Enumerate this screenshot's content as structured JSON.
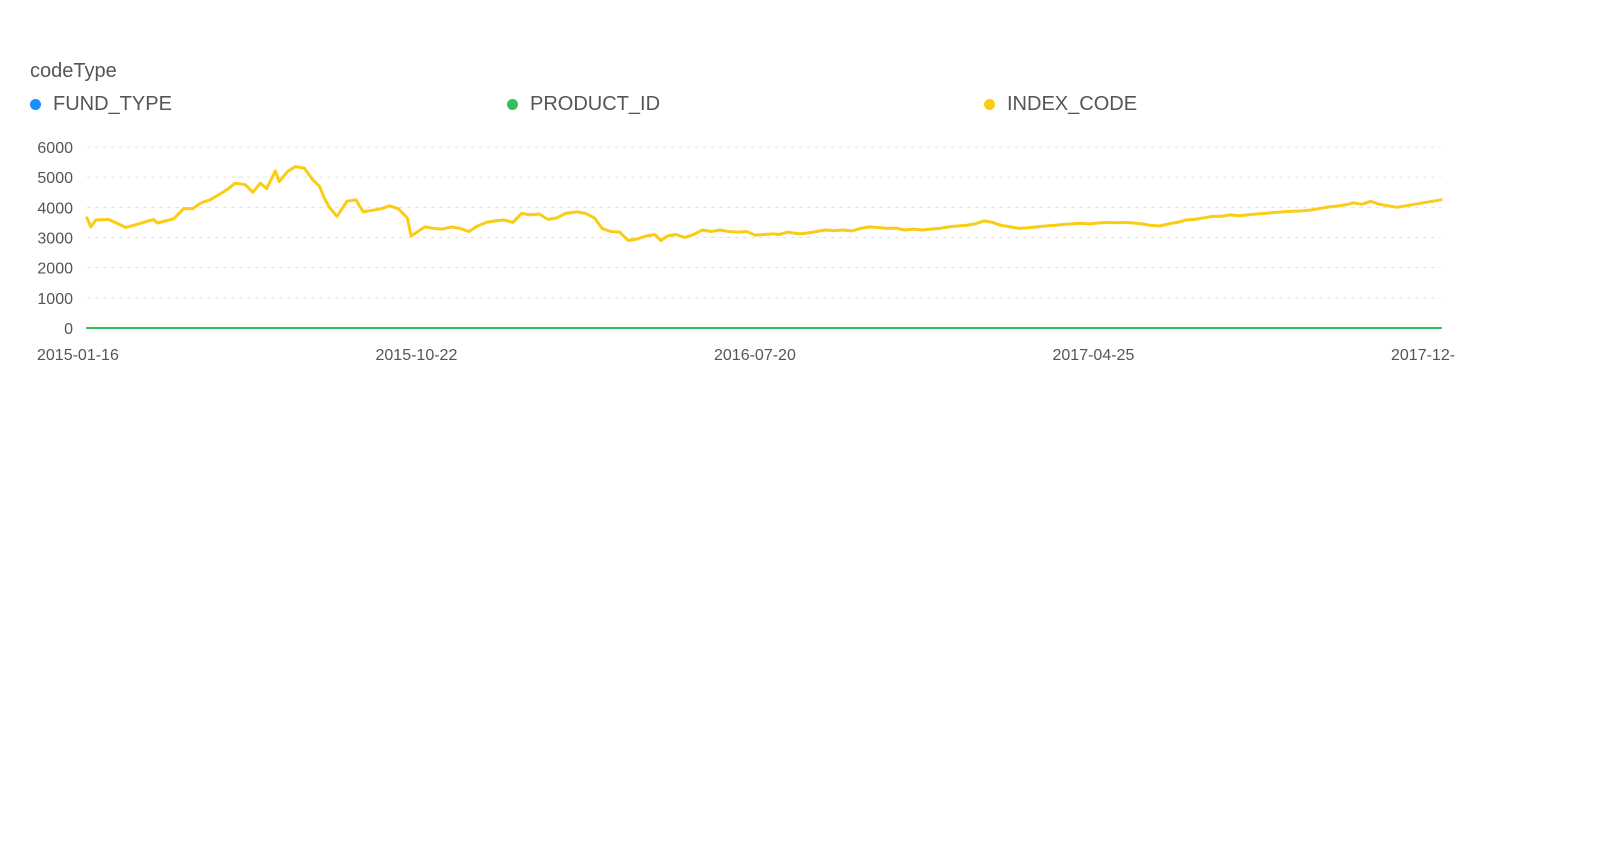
{
  "legend": {
    "title": "codeType",
    "items": [
      {
        "label": "FUND_TYPE",
        "color": "#1890FF"
      },
      {
        "label": "PRODUCT_ID",
        "color": "#2FC25B"
      },
      {
        "label": "INDEX_CODE",
        "color": "#FACC14"
      }
    ]
  },
  "chart_data": {
    "type": "line",
    "legend_title": "codeType",
    "legend_position": "top",
    "grid": true,
    "y_ticks": [
      "0",
      "1000",
      "2000",
      "3000",
      "4000",
      "5000",
      "6000"
    ],
    "x_ticks": [
      "2015-01-16",
      "2015-10-22",
      "2016-07-20",
      "2017-04-25",
      "2017-12-"
    ],
    "ylim": [
      0,
      6000
    ],
    "x_range": [
      "2015-01-16",
      "2017-12-29"
    ],
    "series": [
      {
        "name": "FUND_TYPE",
        "color": "#1890FF",
        "points": [
          [
            "2015-01-16",
            0
          ],
          [
            "2017-12-29",
            0
          ]
        ]
      },
      {
        "name": "PRODUCT_ID",
        "color": "#2FC25B",
        "points": [
          [
            "2015-01-16",
            0
          ],
          [
            "2017-12-29",
            0
          ]
        ]
      },
      {
        "name": "INDEX_CODE",
        "color": "#FACC14",
        "points": [
          [
            "2015-01-16",
            3650
          ],
          [
            "2015-01-19",
            3350
          ],
          [
            "2015-01-23",
            3580
          ],
          [
            "2015-02-02",
            3600
          ],
          [
            "2015-02-16",
            3330
          ],
          [
            "2015-03-02",
            3500
          ],
          [
            "2015-03-10",
            3600
          ],
          [
            "2015-03-13",
            3480
          ],
          [
            "2015-03-26",
            3620
          ],
          [
            "2015-04-03",
            3960
          ],
          [
            "2015-04-10",
            3950
          ],
          [
            "2015-04-17",
            4150
          ],
          [
            "2015-04-24",
            4250
          ],
          [
            "2015-05-04",
            4500
          ],
          [
            "2015-05-08",
            4600
          ],
          [
            "2015-05-14",
            4800
          ],
          [
            "2015-05-22",
            4750
          ],
          [
            "2015-05-28",
            4500
          ],
          [
            "2015-06-03",
            4800
          ],
          [
            "2015-06-08",
            4620
          ],
          [
            "2015-06-15",
            5200
          ],
          [
            "2015-06-18",
            4850
          ],
          [
            "2015-06-25",
            5200
          ],
          [
            "2015-07-01",
            5350
          ],
          [
            "2015-07-08",
            5300
          ],
          [
            "2015-07-15",
            4900
          ],
          [
            "2015-07-20",
            4700
          ],
          [
            "2015-07-24",
            4300
          ],
          [
            "2015-07-28",
            4000
          ],
          [
            "2015-08-03",
            3700
          ],
          [
            "2015-08-11",
            4200
          ],
          [
            "2015-08-18",
            4250
          ],
          [
            "2015-08-24",
            3850
          ],
          [
            "2015-08-31",
            3900
          ],
          [
            "2015-09-07",
            3950
          ],
          [
            "2015-09-14",
            4050
          ],
          [
            "2015-09-21",
            3950
          ],
          [
            "2015-09-28",
            3650
          ],
          [
            "2015-10-01",
            3050
          ],
          [
            "2015-10-12",
            3350
          ],
          [
            "2015-10-19",
            3300
          ],
          [
            "2015-10-26",
            3280
          ],
          [
            "2015-11-02",
            3350
          ],
          [
            "2015-11-09",
            3300
          ],
          [
            "2015-11-16",
            3200
          ],
          [
            "2015-11-23",
            3380
          ],
          [
            "2015-11-30",
            3500
          ],
          [
            "2015-12-07",
            3550
          ],
          [
            "2015-12-14",
            3580
          ],
          [
            "2015-12-21",
            3500
          ],
          [
            "2015-12-28",
            3800
          ],
          [
            "2016-01-04",
            3750
          ],
          [
            "2016-01-11",
            3780
          ],
          [
            "2016-01-18",
            3600
          ],
          [
            "2016-01-25",
            3650
          ],
          [
            "2016-02-01",
            3800
          ],
          [
            "2016-02-10",
            3850
          ],
          [
            "2016-02-17",
            3800
          ],
          [
            "2016-02-24",
            3650
          ],
          [
            "2016-03-01",
            3300
          ],
          [
            "2016-03-08",
            3200
          ],
          [
            "2016-03-15",
            3180
          ],
          [
            "2016-03-22",
            2900
          ],
          [
            "2016-03-29",
            2950
          ],
          [
            "2016-04-05",
            3050
          ],
          [
            "2016-04-12",
            3100
          ],
          [
            "2016-04-17",
            2900
          ],
          [
            "2016-04-22",
            3050
          ],
          [
            "2016-04-29",
            3100
          ],
          [
            "2016-05-06",
            3000
          ],
          [
            "2016-05-13",
            3100
          ],
          [
            "2016-05-20",
            3250
          ],
          [
            "2016-05-27",
            3200
          ],
          [
            "2016-06-03",
            3250
          ],
          [
            "2016-06-10",
            3200
          ],
          [
            "2016-06-17",
            3180
          ],
          [
            "2016-06-24",
            3200
          ],
          [
            "2016-07-01",
            3080
          ],
          [
            "2016-07-08",
            3100
          ],
          [
            "2016-07-15",
            3120
          ],
          [
            "2016-07-20",
            3100
          ],
          [
            "2016-07-27",
            3180
          ],
          [
            "2016-08-05",
            3120
          ],
          [
            "2016-08-12",
            3150
          ],
          [
            "2016-08-19",
            3200
          ],
          [
            "2016-08-26",
            3250
          ],
          [
            "2016-09-02",
            3230
          ],
          [
            "2016-09-09",
            3250
          ],
          [
            "2016-09-16",
            3220
          ],
          [
            "2016-09-23",
            3300
          ],
          [
            "2016-09-30",
            3350
          ],
          [
            "2016-10-07",
            3330
          ],
          [
            "2016-10-14",
            3300
          ],
          [
            "2016-10-21",
            3310
          ],
          [
            "2016-10-28",
            3250
          ],
          [
            "2016-11-04",
            3280
          ],
          [
            "2016-11-11",
            3250
          ],
          [
            "2016-11-18",
            3280
          ],
          [
            "2016-11-25",
            3300
          ],
          [
            "2016-12-02",
            3350
          ],
          [
            "2016-12-09",
            3380
          ],
          [
            "2016-12-16",
            3400
          ],
          [
            "2016-12-23",
            3450
          ],
          [
            "2016-12-30",
            3550
          ],
          [
            "2017-01-06",
            3500
          ],
          [
            "2017-01-13",
            3400
          ],
          [
            "2017-01-20",
            3350
          ],
          [
            "2017-01-27",
            3300
          ],
          [
            "2017-02-03",
            3320
          ],
          [
            "2017-02-10",
            3350
          ],
          [
            "2017-02-17",
            3380
          ],
          [
            "2017-02-24",
            3400
          ],
          [
            "2017-03-03",
            3430
          ],
          [
            "2017-03-10",
            3450
          ],
          [
            "2017-03-17",
            3470
          ],
          [
            "2017-03-24",
            3450
          ],
          [
            "2017-03-31",
            3480
          ],
          [
            "2017-04-07",
            3500
          ],
          [
            "2017-04-14",
            3490
          ],
          [
            "2017-04-21",
            3500
          ],
          [
            "2017-04-28",
            3480
          ],
          [
            "2017-05-05",
            3450
          ],
          [
            "2017-05-12",
            3400
          ],
          [
            "2017-05-19",
            3380
          ],
          [
            "2017-05-26",
            3450
          ],
          [
            "2017-06-02",
            3500
          ],
          [
            "2017-06-09",
            3580
          ],
          [
            "2017-06-16",
            3600
          ],
          [
            "2017-06-23",
            3650
          ],
          [
            "2017-06-30",
            3700
          ],
          [
            "2017-07-07",
            3700
          ],
          [
            "2017-07-14",
            3750
          ],
          [
            "2017-07-21",
            3720
          ],
          [
            "2017-07-28",
            3750
          ],
          [
            "2017-08-04",
            3780
          ],
          [
            "2017-08-11",
            3800
          ],
          [
            "2017-08-18",
            3830
          ],
          [
            "2017-08-25",
            3850
          ],
          [
            "2017-09-01",
            3870
          ],
          [
            "2017-09-08",
            3880
          ],
          [
            "2017-09-15",
            3900
          ],
          [
            "2017-09-22",
            3950
          ],
          [
            "2017-09-29",
            4000
          ],
          [
            "2017-10-09",
            4050
          ],
          [
            "2017-10-16",
            4100
          ],
          [
            "2017-10-20",
            4150
          ],
          [
            "2017-10-27",
            4100
          ],
          [
            "2017-11-03",
            4200
          ],
          [
            "2017-11-10",
            4100
          ],
          [
            "2017-11-17",
            4050
          ],
          [
            "2017-11-24",
            4000
          ],
          [
            "2017-12-01",
            4050
          ],
          [
            "2017-12-08",
            4100
          ],
          [
            "2017-12-15",
            4150
          ],
          [
            "2017-12-22",
            4200
          ],
          [
            "2017-12-29",
            4250
          ]
        ]
      }
    ]
  }
}
